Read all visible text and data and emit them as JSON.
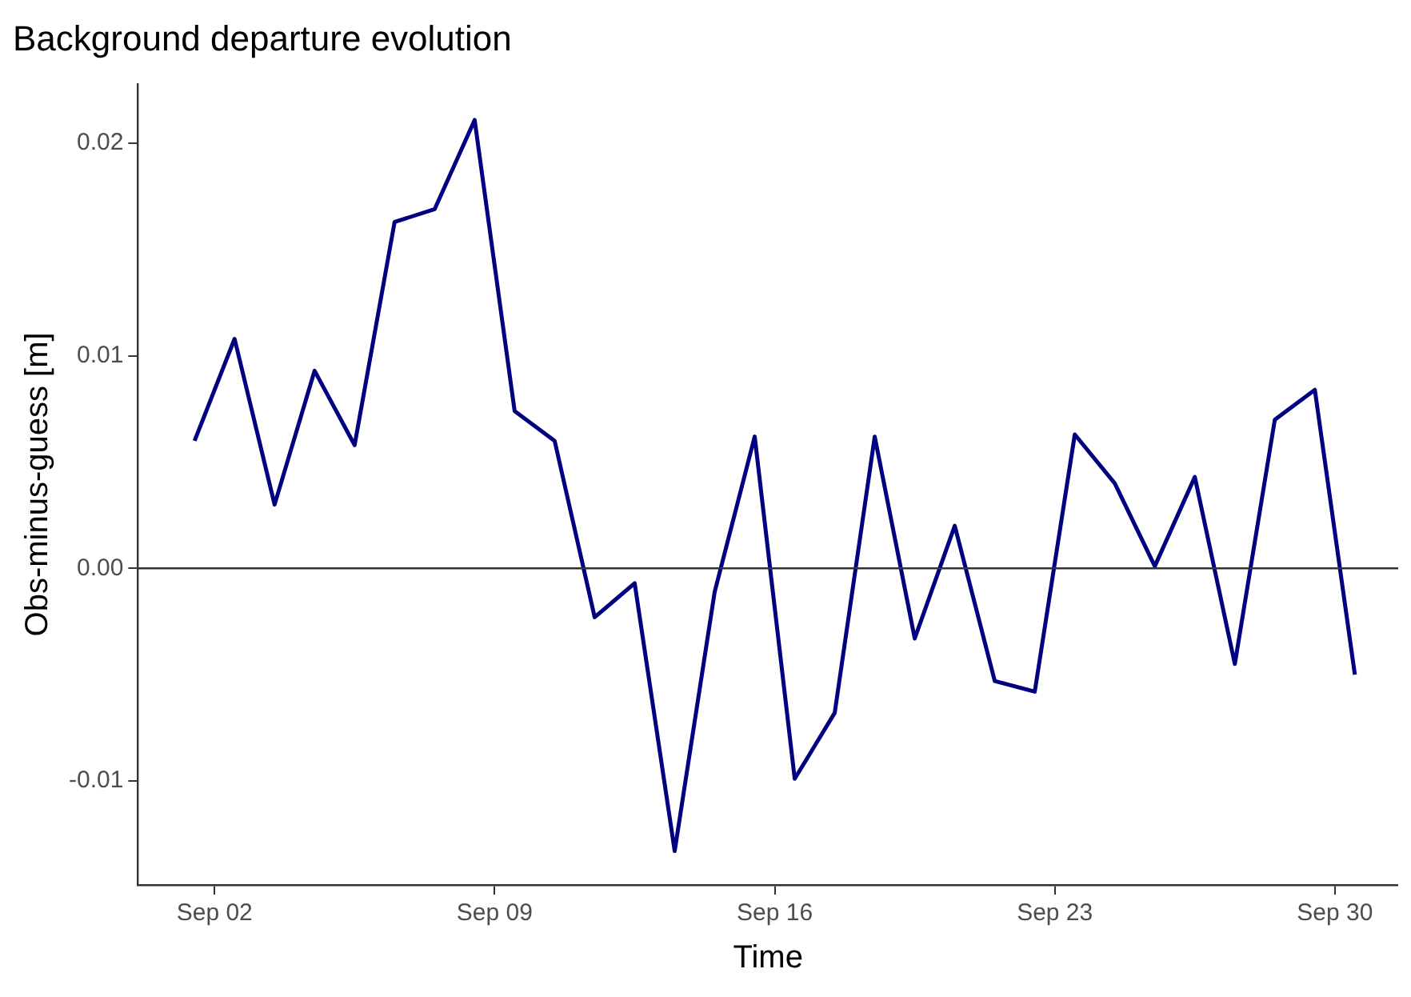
{
  "chart_data": {
    "type": "line",
    "title": "Background departure evolution",
    "xlabel": "Time",
    "ylabel": "Obs-minus-guess [m]",
    "x": [
      "--09-01T12:00",
      "--09-02T12:00",
      "--09-03T12:00",
      "--09-04T12:00",
      "--09-05T12:00",
      "--09-06T12:00",
      "--09-07T12:00",
      "--09-08T12:00",
      "--09-09T12:00",
      "--09-10T12:00",
      "--09-11T12:00",
      "--09-12T12:00",
      "--09-13T12:00",
      "--09-14T12:00",
      "--09-15T12:00",
      "--09-16T12:00",
      "--09-17T12:00",
      "--09-18T12:00",
      "--09-19T12:00",
      "--09-20T12:00",
      "--09-21T12:00",
      "--09-22T12:00",
      "--09-23T12:00",
      "--09-24T12:00",
      "--09-25T12:00",
      "--09-26T12:00",
      "--09-27T12:00",
      "--09-28T12:00",
      "--09-29T12:00",
      "--09-30T12:00"
    ],
    "series": [
      {
        "color": "#000080",
        "values": [
          0.006,
          0.0108,
          0.003,
          0.0093,
          0.0058,
          0.0163,
          0.0169,
          0.0211,
          0.0074,
          0.006,
          -0.0023,
          -0.0007,
          -0.0133,
          -0.0011,
          0.0062,
          -0.0099,
          -0.0068,
          0.0062,
          -0.0033,
          0.002,
          -0.0053,
          -0.0058,
          0.0063,
          0.004,
          0.0001,
          0.0043,
          -0.0045,
          0.007,
          0.0084,
          -0.005
        ]
      }
    ],
    "xlim": [
      "--08-31T02:00",
      "--10-01T14:00"
    ],
    "xticks": [
      {
        "value": "--09-02",
        "label": "Sep 02"
      },
      {
        "value": "--09-09",
        "label": "Sep 09"
      },
      {
        "value": "--09-16",
        "label": "Sep 16"
      },
      {
        "value": "--09-23",
        "label": "Sep 23"
      },
      {
        "value": "--09-30",
        "label": "Sep 30"
      }
    ],
    "ylim": [
      -0.0149,
      0.0228
    ],
    "yticks": [
      -0.01,
      {
        "value": 0,
        "label": "0.00"
      },
      0.01,
      0.02
    ],
    "ref_lines": [
      {
        "axis": "y",
        "value": 0,
        "color": "#333333"
      }
    ],
    "grid": false,
    "legend": false,
    "marker": "none",
    "line_style": "solid"
  }
}
